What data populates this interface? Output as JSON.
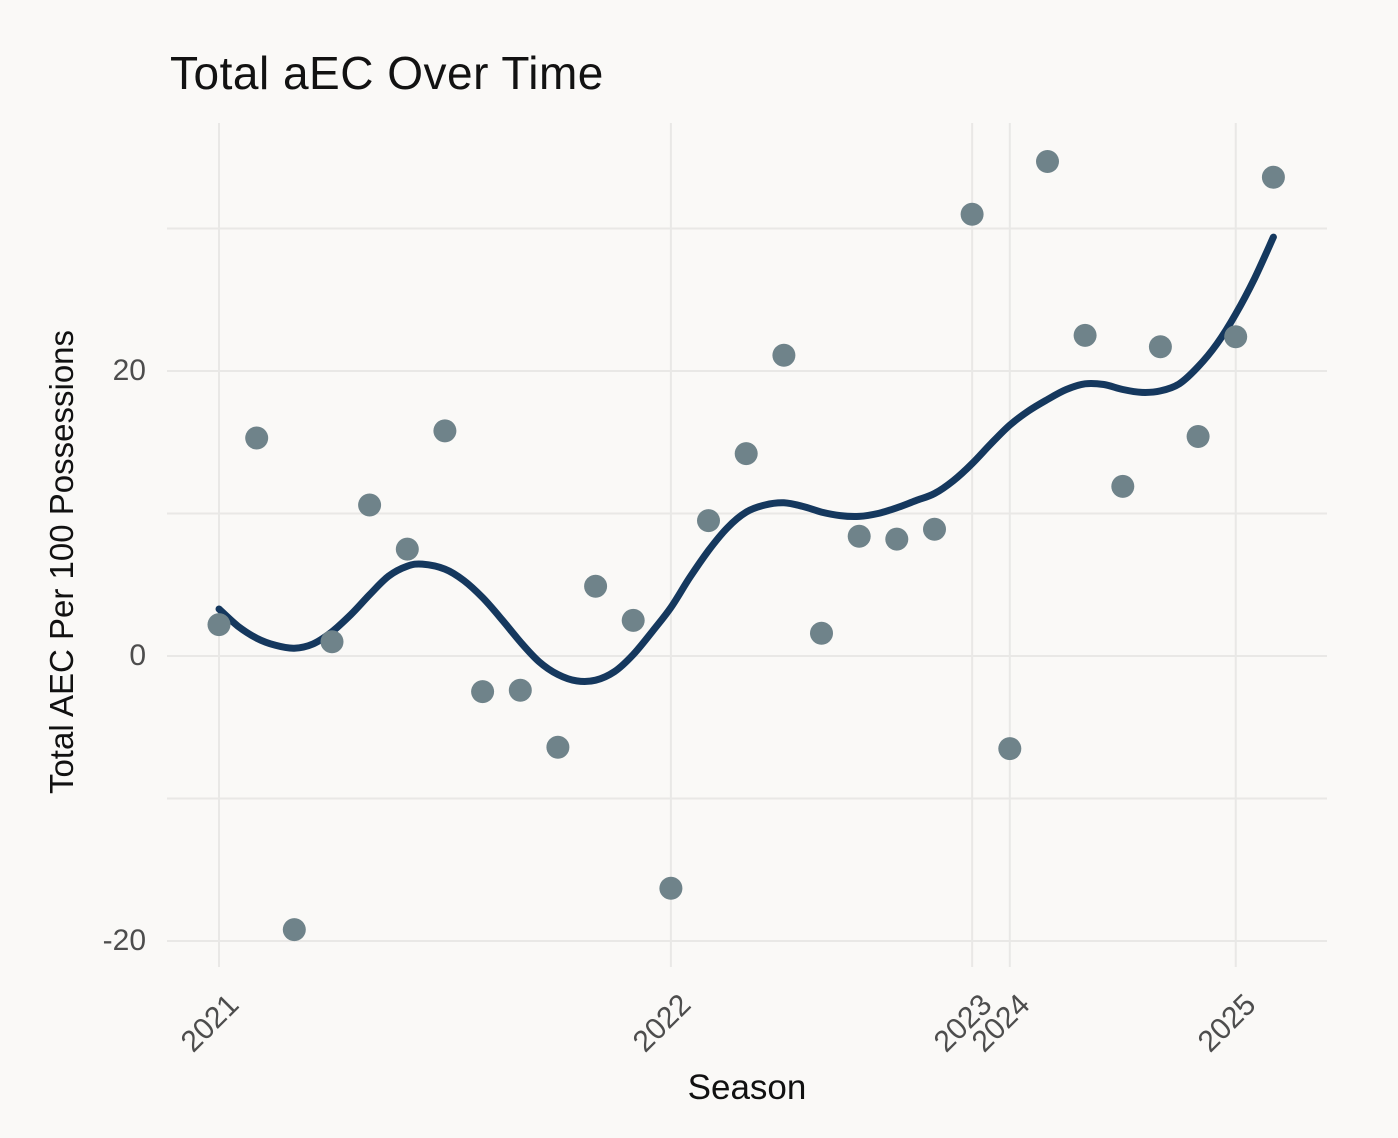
{
  "title": "Total aEC Over Time",
  "x_axis": {
    "label": "Season"
  },
  "y_axis": {
    "label": "Total AEC Per 100 Possessions"
  },
  "chart_data": {
    "type": "scatter",
    "title": "Total aEC Over Time",
    "xlabel": "Season",
    "ylabel": "Total AEC Per 100 Possessions",
    "x_is_evenly_spaced_index": true,
    "points": [
      [
        0,
        2.2
      ],
      [
        1,
        15.3
      ],
      [
        2,
        -19.2
      ],
      [
        3,
        1.0
      ],
      [
        4,
        10.6
      ],
      [
        5,
        7.5
      ],
      [
        6,
        15.8
      ],
      [
        7,
        -2.5
      ],
      [
        8,
        -2.4
      ],
      [
        9,
        -6.4
      ],
      [
        10,
        4.9
      ],
      [
        11,
        2.5
      ],
      [
        12,
        -16.3
      ],
      [
        13,
        9.5
      ],
      [
        14,
        14.2
      ],
      [
        15,
        21.1
      ],
      [
        16,
        1.6
      ],
      [
        17,
        8.4
      ],
      [
        18,
        8.2
      ],
      [
        19,
        8.9
      ],
      [
        20,
        31.0
      ],
      [
        21,
        -6.5
      ],
      [
        22,
        34.7
      ],
      [
        23,
        22.5
      ],
      [
        24,
        11.9
      ],
      [
        25,
        21.7
      ],
      [
        26,
        15.4
      ],
      [
        27,
        22.4
      ],
      [
        28,
        33.6
      ]
    ],
    "trend": [
      [
        0,
        3.3
      ],
      [
        0.5,
        2.1
      ],
      [
        1,
        1.25
      ],
      [
        1.5,
        0.75
      ],
      [
        2,
        0.55
      ],
      [
        2.5,
        0.85
      ],
      [
        3,
        1.7
      ],
      [
        3.5,
        2.9
      ],
      [
        4,
        4.3
      ],
      [
        4.5,
        5.6
      ],
      [
        5,
        6.3
      ],
      [
        5.4,
        6.45
      ],
      [
        6,
        6.1
      ],
      [
        6.5,
        5.3
      ],
      [
        7,
        4.1
      ],
      [
        7.5,
        2.6
      ],
      [
        8,
        1.0
      ],
      [
        8.5,
        -0.4
      ],
      [
        9,
        -1.3
      ],
      [
        9.5,
        -1.75
      ],
      [
        10,
        -1.7
      ],
      [
        10.5,
        -1.1
      ],
      [
        11,
        0.1
      ],
      [
        11.5,
        1.7
      ],
      [
        12,
        3.4
      ],
      [
        12.5,
        5.5
      ],
      [
        13,
        7.4
      ],
      [
        13.5,
        9.0
      ],
      [
        14,
        10.1
      ],
      [
        14.5,
        10.6
      ],
      [
        15,
        10.75
      ],
      [
        15.5,
        10.5
      ],
      [
        16,
        10.1
      ],
      [
        16.5,
        9.85
      ],
      [
        17,
        9.8
      ],
      [
        17.5,
        10.0
      ],
      [
        18,
        10.4
      ],
      [
        18.5,
        10.9
      ],
      [
        19,
        11.4
      ],
      [
        19.5,
        12.3
      ],
      [
        20,
        13.5
      ],
      [
        20.5,
        14.9
      ],
      [
        21,
        16.2
      ],
      [
        21.5,
        17.2
      ],
      [
        22,
        18.0
      ],
      [
        22.5,
        18.7
      ],
      [
        23,
        19.1
      ],
      [
        23.5,
        19.05
      ],
      [
        24,
        18.7
      ],
      [
        24.5,
        18.5
      ],
      [
        25,
        18.6
      ],
      [
        25.5,
        19.1
      ],
      [
        26,
        20.3
      ],
      [
        26.5,
        21.9
      ],
      [
        27,
        24.0
      ],
      [
        27.5,
        26.5
      ],
      [
        28,
        29.4
      ]
    ],
    "x_breaks": [
      {
        "label": "2021",
        "index": 0
      },
      {
        "label": "2022",
        "index": 12
      },
      {
        "label": "2023",
        "index": 20
      },
      {
        "label": "2024",
        "index": 21
      },
      {
        "label": "2025",
        "index": 27
      }
    ],
    "y_ticks": [
      {
        "label": "20",
        "value": 20
      },
      {
        "label": "0",
        "value": 0
      },
      {
        "label": "-20",
        "value": -20
      }
    ],
    "y_gridline_values": [
      30,
      20,
      10,
      0,
      -10,
      -20
    ],
    "ylim": [
      -21.8,
      37.4
    ],
    "xlim_index": [
      -1.38,
      29.4
    ],
    "grid": "on",
    "legend": "none",
    "colors": {
      "background": "#faf9f7",
      "grid": "#e9e8e6",
      "point": "#6f838a",
      "trend": "#15385e",
      "tick_text": "#4d4d4d",
      "title_text": "#121212"
    }
  }
}
